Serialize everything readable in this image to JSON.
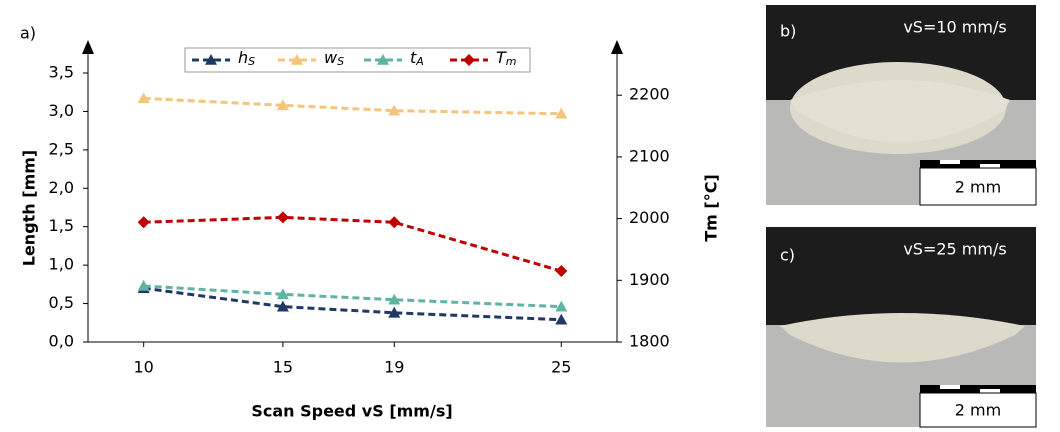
{
  "chart_data": {
    "type": "line",
    "panel_label": "a)",
    "x_label": "Scan Speed vS [mm/s]",
    "y_label": "Length [mm]",
    "y2_label": "Tm [°C]",
    "x": [
      10,
      15,
      19,
      25
    ],
    "xlim": [
      8,
      27
    ],
    "xticks": [
      10,
      15,
      19,
      25
    ],
    "ylim": [
      0,
      3.5
    ],
    "yticks": [
      {
        "value": 0,
        "label": "0,0"
      },
      {
        "value": 0.5,
        "label": "0,5"
      },
      {
        "value": 1,
        "label": "1,0"
      },
      {
        "value": 1.5,
        "label": "1,5"
      },
      {
        "value": 2,
        "label": "2,0"
      },
      {
        "value": 2.5,
        "label": "2,5"
      },
      {
        "value": 3,
        "label": "3,0"
      },
      {
        "value": 3.5,
        "label": "3,5"
      }
    ],
    "y2lim": [
      1800,
      2236
    ],
    "y2ticks": [
      1800,
      1900,
      2000,
      2100,
      2200
    ],
    "legend": "top",
    "series": [
      {
        "name": "hS",
        "color": "#1f3864",
        "marker": "triangle",
        "values": [
          0.7,
          0.46,
          0.38,
          0.29
        ]
      },
      {
        "name": "wS",
        "color": "#f4c47a",
        "marker": "triangle",
        "values": [
          3.17,
          3.08,
          3.01,
          2.97
        ]
      },
      {
        "name": "tA",
        "color": "#5fb3a3",
        "marker": "triangle",
        "values": [
          0.73,
          0.62,
          0.55,
          0.46
        ]
      },
      {
        "name": "Tm",
        "color": "#c00000",
        "marker": "diamond",
        "axis": "y2",
        "values": [
          1994,
          2002,
          1994,
          1915
        ]
      }
    ]
  },
  "images": [
    {
      "panel_label": "b)",
      "caption": "vS=10 mm/s",
      "scale_bar": "2 mm"
    },
    {
      "panel_label": "c)",
      "caption": "vS=25 mm/s",
      "scale_bar": "2 mm"
    }
  ]
}
